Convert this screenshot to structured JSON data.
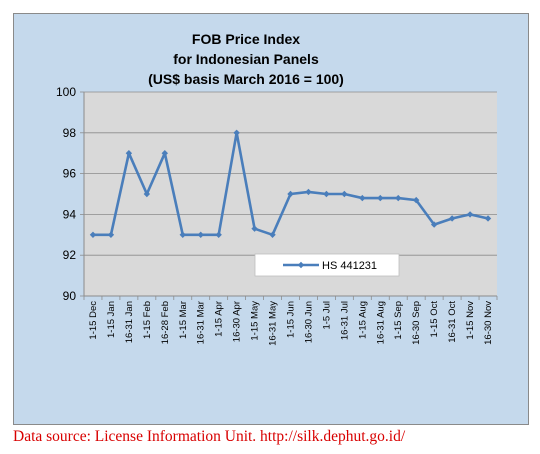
{
  "chart_data": {
    "type": "line",
    "title": [
      "FOB Price Index",
      "for Indonesian Panels",
      "(US$ basis March 2016 = 100)"
    ],
    "xlabel": "",
    "ylabel": "",
    "ylim": [
      90,
      100
    ],
    "yticks": [
      90,
      92,
      94,
      96,
      98,
      100
    ],
    "grid": true,
    "legend_position": "lower-right",
    "categories": [
      "1-15 Dec",
      "1-15 Jan",
      "16-31 Jan",
      "1-15 Feb",
      "16-28 Feb",
      "1-15 Mar",
      "16-31 Mar",
      "1-15 Apr",
      "16-30 Apr",
      "1-15 May",
      "16-31 May",
      "1-15 Jun",
      "16-30 Jun",
      "1-5 Jul",
      "16-31 Jul",
      "1-15 Aug",
      "16-31 Aug",
      "1-15 Sep",
      "16-30 Sep",
      "1-15 Oct",
      "16-31 Oct",
      "1-15 Nov",
      "16-30 Nov"
    ],
    "series": [
      {
        "name": "HS 441231",
        "color": "#4a7ebb",
        "values": [
          93.0,
          93.0,
          97.0,
          95.0,
          97.0,
          93.0,
          93.0,
          93.0,
          98.0,
          93.3,
          93.0,
          95.0,
          95.1,
          95.0,
          95.0,
          94.8,
          94.8,
          94.8,
          94.7,
          93.5,
          93.8,
          94.0,
          93.8
        ]
      }
    ]
  },
  "source_note": "Data source: License Information Unit. http://silk.dephut.go.id/"
}
